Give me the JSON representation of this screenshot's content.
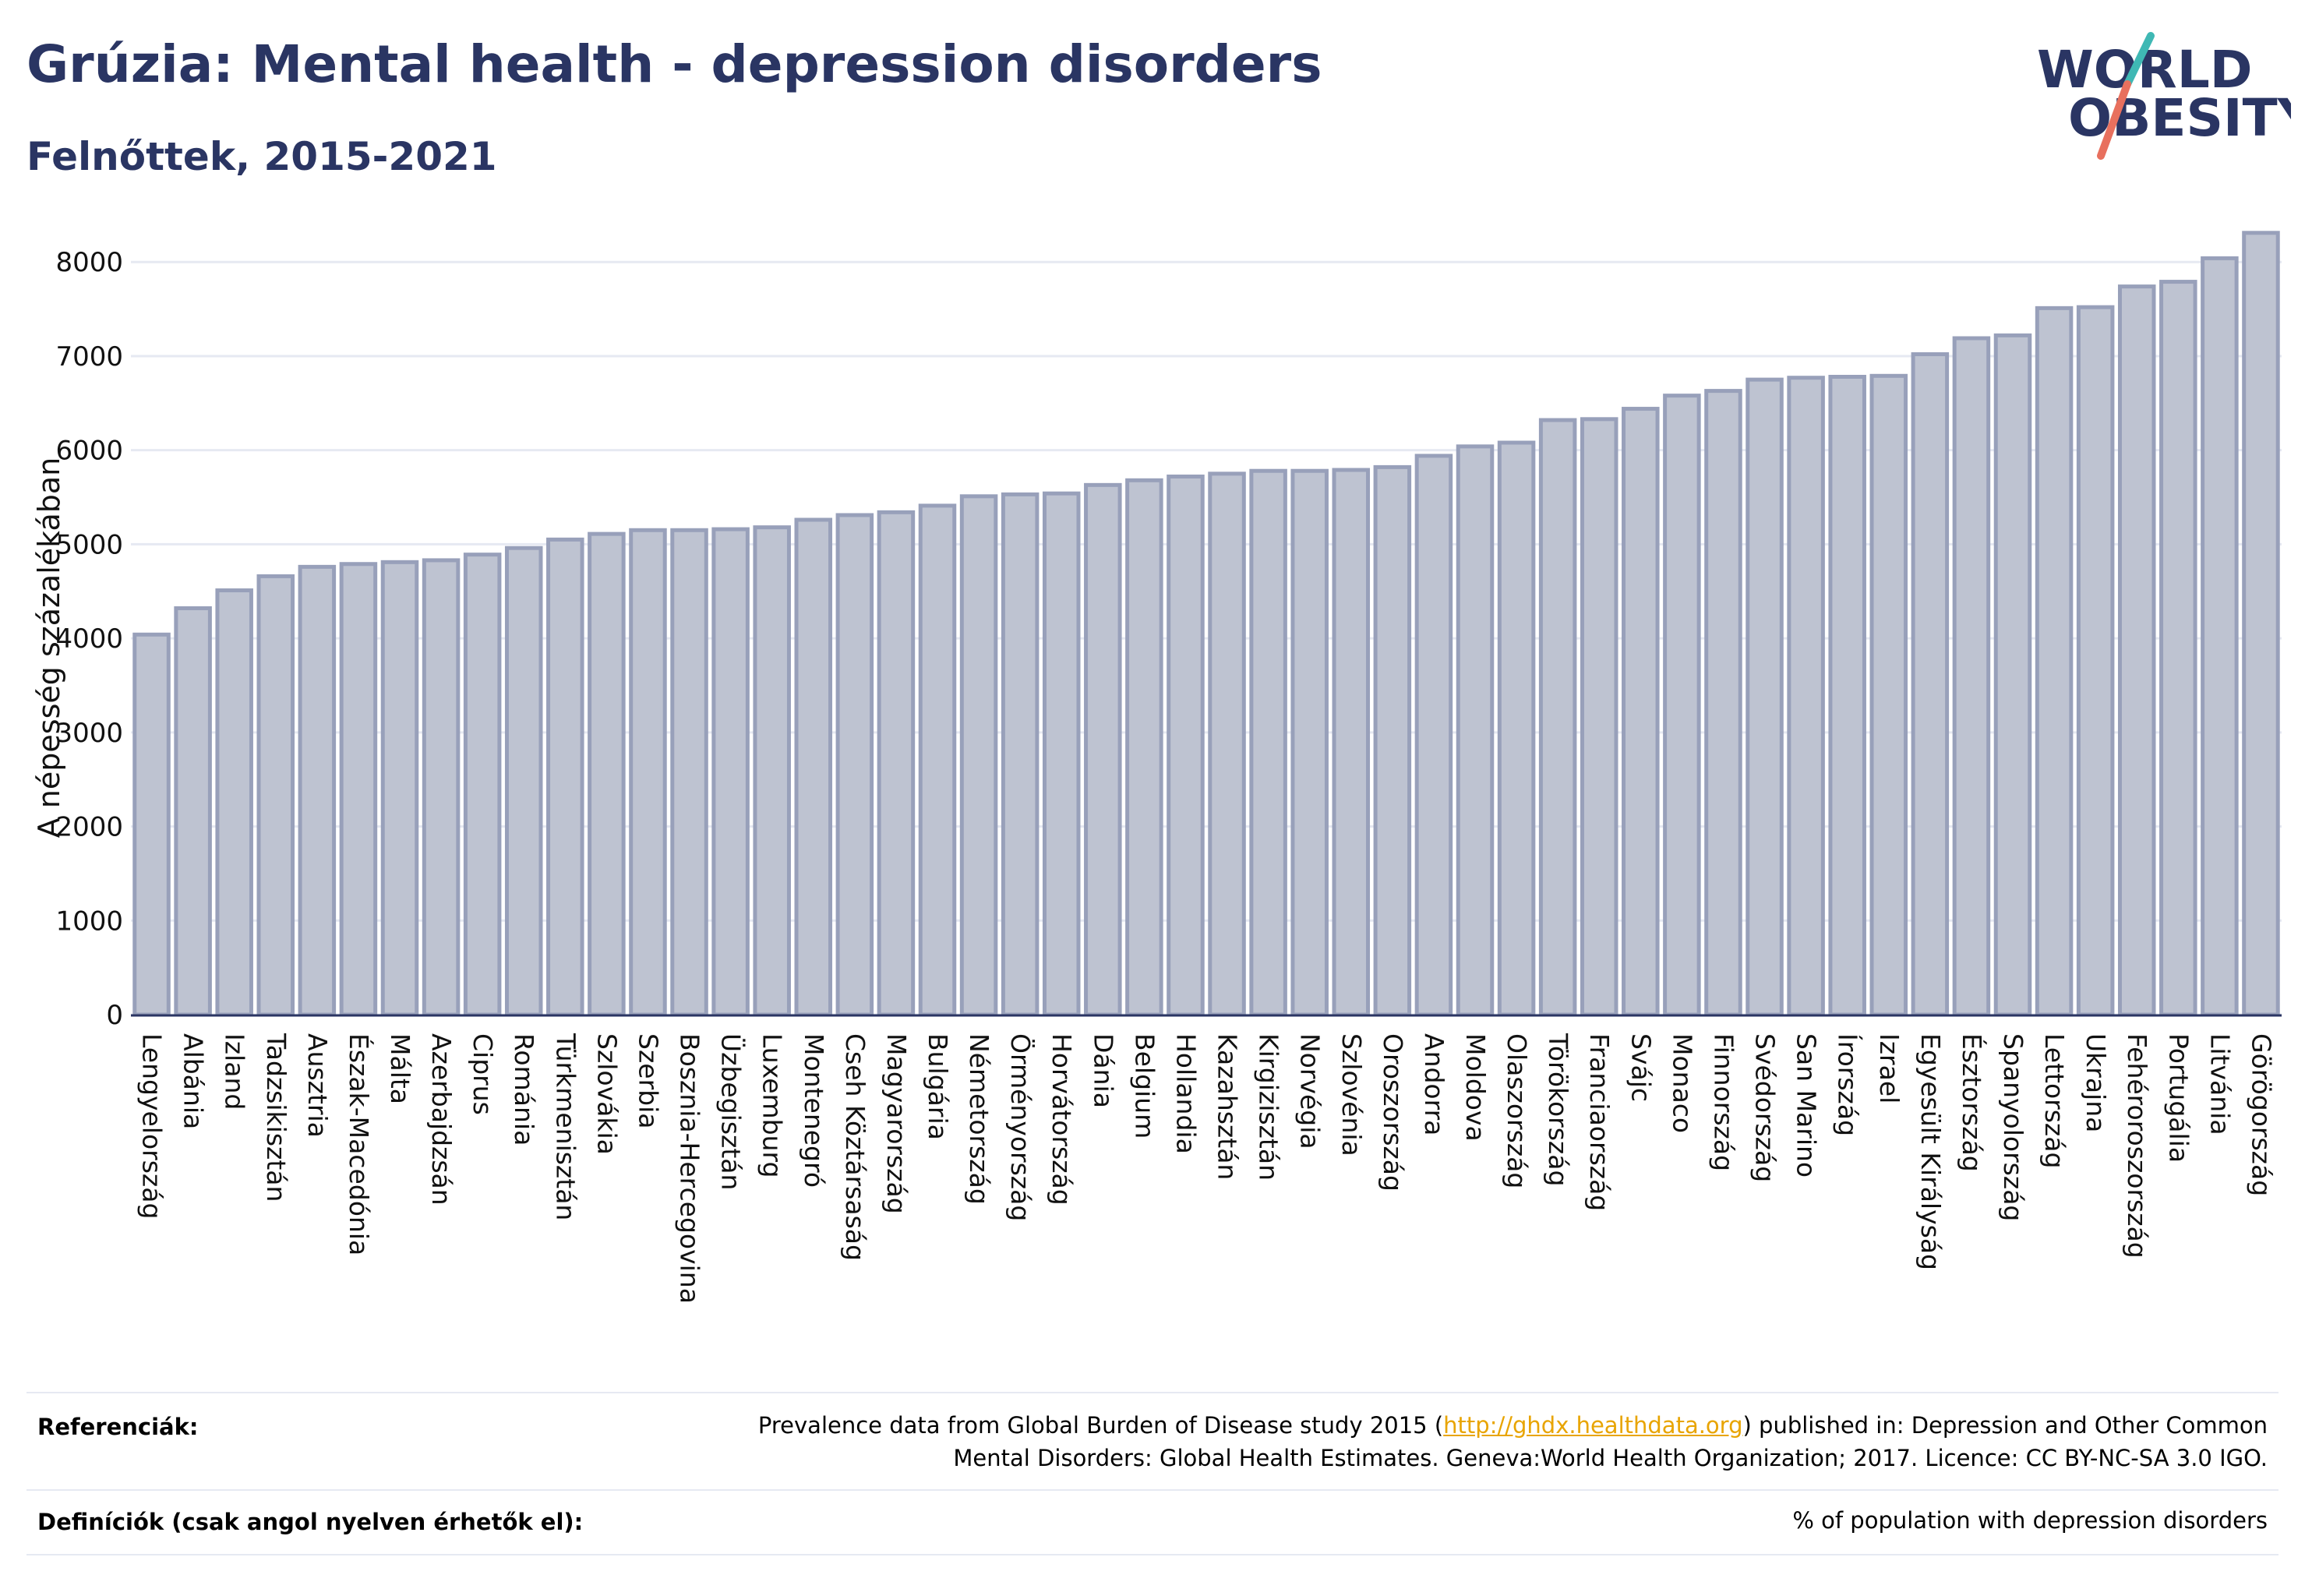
{
  "header": {
    "title": "Grúzia: Mental health - depression disorders",
    "subtitle": "Felnőttek, 2015-2021"
  },
  "logo": {
    "line1": "WORLD",
    "line2": "OBESITY"
  },
  "colors": {
    "title": "#2a3563",
    "bar_fill": "#bec3d1",
    "bar_stroke": "#98a0ba",
    "grid": "#e6e9f2",
    "axis": "#2a3563",
    "logo_teal": "#3fb8b4",
    "logo_coral": "#e8705e",
    "link": "#e8a400"
  },
  "chart_data": {
    "type": "bar",
    "ylabel": "A népesség százalékában",
    "ylim": [
      0,
      8300
    ],
    "yticks": [
      0,
      1000,
      2000,
      3000,
      4000,
      5000,
      6000,
      7000,
      8000
    ],
    "grid": true,
    "categories": [
      "Lengyelország",
      "Albánia",
      "Izland",
      "Tadzsikisztán",
      "Ausztria",
      "Észak-Macedónia",
      "Málta",
      "Azerbajdzsán",
      "Ciprus",
      "Románia",
      "Türkmenisztán",
      "Szlovákia",
      "Szerbia",
      "Bosznia-Hercegovina",
      "Üzbegisztán",
      "Luxemburg",
      "Montenegró",
      "Cseh Köztársaság",
      "Magyarország",
      "Bulgária",
      "Németország",
      "Örményország",
      "Horvátország",
      "Dánia",
      "Belgium",
      "Hollandia",
      "Kazahsztán",
      "Kirgizisztán",
      "Norvégia",
      "Szlovénia",
      "Oroszország",
      "Andorra",
      "Moldova",
      "Olaszország",
      "Törökország",
      "Franciaország",
      "Svájc",
      "Monaco",
      "Finnország",
      "Svédország",
      "San Marino",
      "Írország",
      "Izrael",
      "Egyesült Királyság",
      "Észtország",
      "Spanyolország",
      "Lettország",
      "Ukrajna",
      "Fehéroroszország",
      "Portugália",
      "Litvánia",
      "Görögország"
    ],
    "values": [
      4040,
      4320,
      4510,
      4660,
      4760,
      4790,
      4810,
      4830,
      4890,
      4960,
      5050,
      5110,
      5150,
      5150,
      5160,
      5180,
      5260,
      5310,
      5340,
      5410,
      5510,
      5530,
      5540,
      5630,
      5680,
      5720,
      5750,
      5780,
      5780,
      5790,
      5820,
      5940,
      6040,
      6080,
      6320,
      6330,
      6440,
      6580,
      6630,
      6750,
      6770,
      6780,
      6790,
      7020,
      7190,
      7220,
      7510,
      7520,
      7740,
      7790,
      8040,
      8310
    ]
  },
  "references": {
    "label": "Referenciák:",
    "text_before": "Prevalence data from Global Burden of Disease study 2015 (",
    "link": "http://ghdx.healthdata.org",
    "text_after": ") published in: Depression and Other Common",
    "line2": "Mental Disorders: Global Health Estimates. Geneva:World Health Organization; 2017. Licence: CC BY-NC-SA 3.0 IGO."
  },
  "definitions": {
    "label": "Definíciók (csak angol nyelven érhetők el):",
    "text": "% of population with depression disorders"
  }
}
